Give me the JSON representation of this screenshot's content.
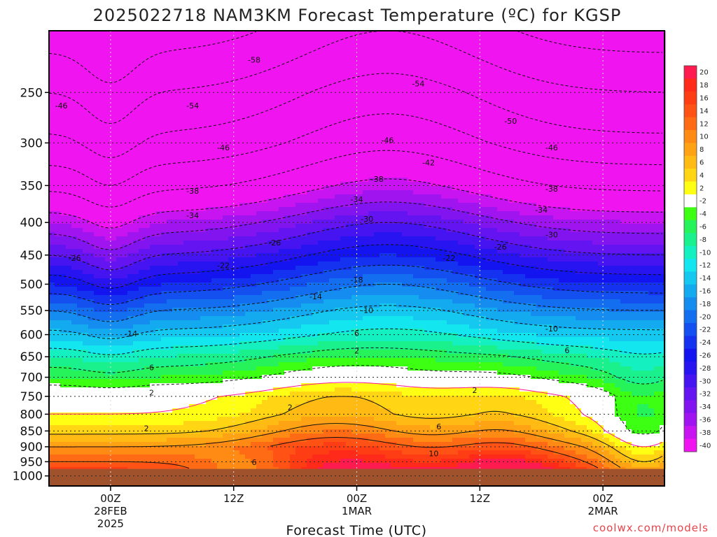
{
  "chart_data": {
    "type": "heatmap",
    "title": "2025022718 NAM3KM Forecast Temperature (ºC) for KGSP",
    "xlabel": "Forecast Time (UTC)",
    "credit": "coolwx.com/models",
    "y_ticks": [
      250,
      300,
      350,
      400,
      450,
      500,
      550,
      600,
      650,
      700,
      750,
      800,
      850,
      900,
      950,
      1000
    ],
    "x_ticks": [
      {
        "label": "00Z",
        "sub1": "28FEB",
        "sub2": "2025",
        "hour": 6
      },
      {
        "label": "12Z",
        "sub1": "",
        "sub2": "",
        "hour": 18
      },
      {
        "label": "00Z",
        "sub1": "1MAR",
        "sub2": "",
        "hour": 30
      },
      {
        "label": "12Z",
        "sub1": "",
        "sub2": "",
        "hour": 42
      },
      {
        "label": "00Z",
        "sub1": "2MAR",
        "sub2": "",
        "hour": 54
      }
    ],
    "x_range_hours": [
      0,
      60
    ],
    "p_range_hPa": [
      200,
      1037
    ],
    "y_scale": "log-pressure",
    "grid": true,
    "legend": "right",
    "colorbar": {
      "levels": [
        20,
        18,
        16,
        14,
        12,
        10,
        8,
        6,
        4,
        2,
        -2,
        -4,
        -6,
        -8,
        -10,
        -12,
        -14,
        -16,
        -18,
        -20,
        -22,
        -24,
        -26,
        -28,
        -30,
        -32,
        -34,
        -36,
        -38,
        -40
      ],
      "colors": [
        "#ff1a4f",
        "#ff2a1a",
        "#ff3d14",
        "#ff5214",
        "#ff6b14",
        "#ff8a14",
        "#ffa214",
        "#ffbb14",
        "#ffd514",
        "#ffff14",
        "#ffffff",
        "#3cff14",
        "#26f25a",
        "#1af08c",
        "#14f0c0",
        "#14e6f0",
        "#14c8f0",
        "#14aaf0",
        "#148cf0",
        "#146ef0",
        "#1450f0",
        "#1432f0",
        "#1414f0",
        "#2814f0",
        "#4614f0",
        "#6414f0",
        "#8214f0",
        "#a014f0",
        "#c814f0",
        "#f014f0"
      ]
    },
    "temperature_profile_hour6": [
      {
        "p": 1000,
        "t": 18
      },
      {
        "p": 950,
        "t": 14
      },
      {
        "p": 900,
        "t": 10
      },
      {
        "p": 850,
        "t": 5
      },
      {
        "p": 800,
        "t": 2
      },
      {
        "p": 750,
        "t": 1
      },
      {
        "p": 700,
        "t": -4
      },
      {
        "p": 650,
        "t": -8
      },
      {
        "p": 600,
        "t": -13
      },
      {
        "p": 550,
        "t": -18
      },
      {
        "p": 500,
        "t": -24
      },
      {
        "p": 450,
        "t": -30
      },
      {
        "p": 400,
        "t": -36
      },
      {
        "p": 350,
        "t": -43
      },
      {
        "p": 300,
        "t": -49
      },
      {
        "p": 250,
        "t": -54
      }
    ],
    "contour_labels": [
      {
        "text": "-58",
        "hour": 20,
        "p": 222
      },
      {
        "text": "-54",
        "hour": 36,
        "p": 242
      },
      {
        "text": "-54",
        "hour": 14,
        "p": 262
      },
      {
        "text": "-46",
        "hour": 1.2,
        "p": 262
      },
      {
        "text": "-50",
        "hour": 45,
        "p": 277
      },
      {
        "text": "-46",
        "hour": 33,
        "p": 297
      },
      {
        "text": "-46",
        "hour": 17,
        "p": 305
      },
      {
        "text": "-46",
        "hour": 49,
        "p": 305
      },
      {
        "text": "-42",
        "hour": 37,
        "p": 322
      },
      {
        "text": "-38",
        "hour": 32,
        "p": 342
      },
      {
        "text": "-38",
        "hour": 14,
        "p": 357
      },
      {
        "text": "-38",
        "hour": 49,
        "p": 354
      },
      {
        "text": "-34",
        "hour": 30,
        "p": 368
      },
      {
        "text": "-34",
        "hour": 48,
        "p": 382
      },
      {
        "text": "-34",
        "hour": 14,
        "p": 390
      },
      {
        "text": "-30",
        "hour": 31,
        "p": 395
      },
      {
        "text": "-30",
        "hour": 49,
        "p": 418
      },
      {
        "text": "-26",
        "hour": 22,
        "p": 430
      },
      {
        "text": "-26",
        "hour": 44,
        "p": 437
      },
      {
        "text": "-26",
        "hour": 2.5,
        "p": 455
      },
      {
        "text": "-22",
        "hour": 39,
        "p": 455
      },
      {
        "text": "-22",
        "hour": 17,
        "p": 467
      },
      {
        "text": "-18",
        "hour": 30,
        "p": 492
      },
      {
        "text": "-14",
        "hour": 26,
        "p": 523
      },
      {
        "text": "-10",
        "hour": 31,
        "p": 549
      },
      {
        "text": "-10",
        "hour": 49,
        "p": 587
      },
      {
        "text": "-14",
        "hour": 8,
        "p": 598
      },
      {
        "text": "6",
        "hour": 30,
        "p": 597
      },
      {
        "text": "6",
        "hour": 50.5,
        "p": 635
      },
      {
        "text": "2",
        "hour": 30,
        "p": 636
      },
      {
        "text": "6",
        "hour": 10,
        "p": 676
      },
      {
        "text": "2",
        "hour": 10,
        "p": 740
      },
      {
        "text": "2",
        "hour": 23.5,
        "p": 780
      },
      {
        "text": "2",
        "hour": 41.5,
        "p": 733
      },
      {
        "text": "6",
        "hour": 38,
        "p": 837
      },
      {
        "text": "2",
        "hour": 9.5,
        "p": 842
      },
      {
        "text": "10",
        "hour": 37.5,
        "p": 922
      },
      {
        "text": "6",
        "hour": 20,
        "p": 952
      }
    ]
  }
}
